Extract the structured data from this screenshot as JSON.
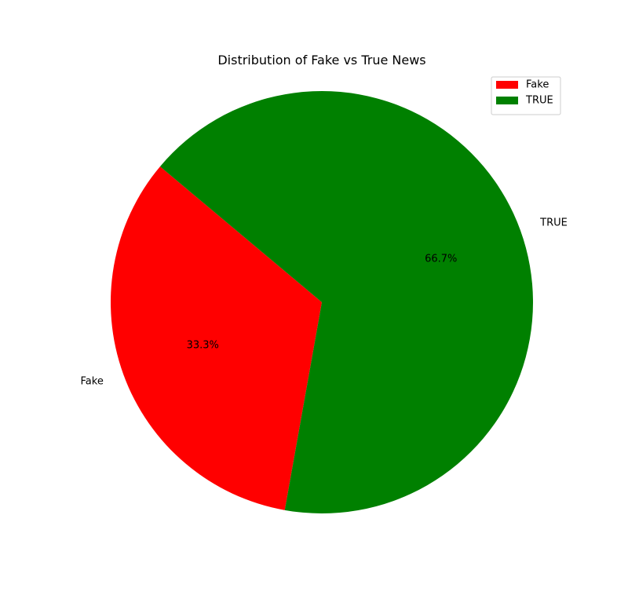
{
  "chart_data": {
    "type": "pie",
    "title": "Distribution of Fake vs True News",
    "categories": [
      "Fake",
      "TRUE"
    ],
    "values": [
      33.3,
      66.7
    ],
    "percent_labels": [
      "33.3%",
      "66.7%"
    ],
    "colors": [
      "#ff0000",
      "#008000"
    ],
    "start_angle_deg": 140,
    "direction": "counterclockwise",
    "legend": {
      "placement": "top-right",
      "entries": [
        "Fake",
        "TRUE"
      ]
    }
  }
}
